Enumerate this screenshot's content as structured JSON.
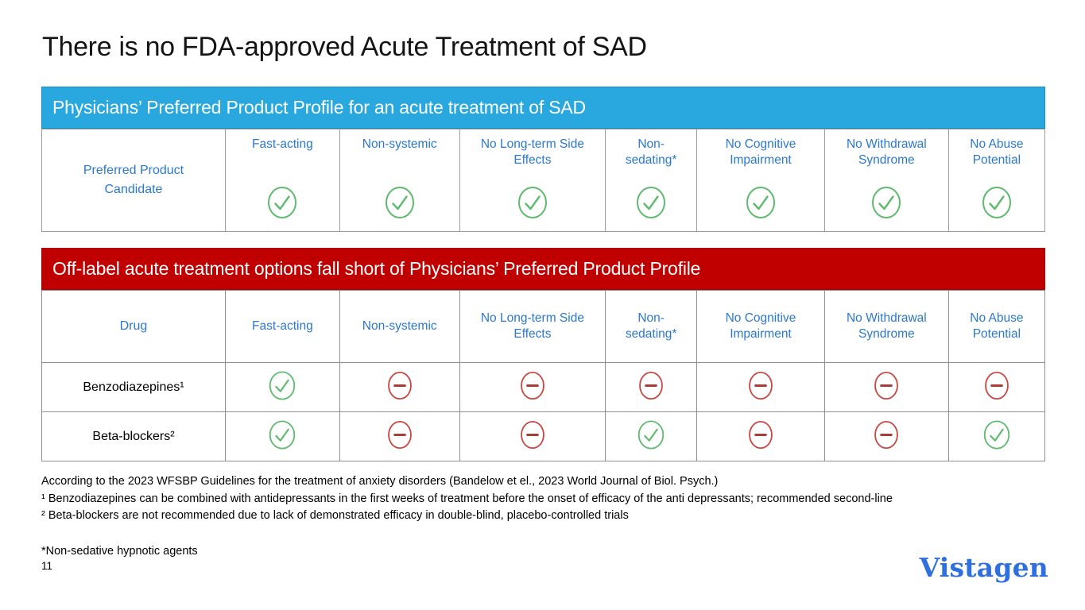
{
  "slide": {
    "title": "There is no FDA-approved Acute Treatment of SAD",
    "page_number": "11",
    "logo_text": "Vistagen"
  },
  "criteria_columns": [
    "Fast-acting",
    "Non-systemic",
    "No Long-term Side Effects",
    "Non-sedating*",
    "No Cognitive Impairment",
    "No Withdrawal Syndrome",
    "No Abuse Potential"
  ],
  "table1": {
    "header": "Physicians’ Preferred Product Profile for an acute treatment of SAD",
    "row_label": "Preferred Product Candidate",
    "values": [
      "check",
      "check",
      "check",
      "check",
      "check",
      "check",
      "check"
    ]
  },
  "table2": {
    "header": "Off-label acute treatment options fall short of Physicians’ Preferred Product Profile",
    "row_label_header": "Drug",
    "rows": [
      {
        "label": "Benzodiazepines¹",
        "values": [
          "check",
          "minus",
          "minus",
          "minus",
          "minus",
          "minus",
          "minus"
        ]
      },
      {
        "label": "Beta-blockers²",
        "values": [
          "check",
          "minus",
          "minus",
          "check",
          "minus",
          "minus",
          "check"
        ]
      }
    ]
  },
  "footnotes": {
    "source_line": "According to the 2023 WFSBP Guidelines for the treatment of anxiety disorders (Bandelow et el., 2023 World Journal of Biol. Psych.)",
    "note1": "¹ Benzodiazepines can be combined with antidepressants in the first weeks of treatment before the onset of efficacy of the anti depressants; recommended second-line",
    "note2": "² Beta-blockers are not recommended due to lack of demonstrated efficacy in double-blind, placebo-controlled trials",
    "asterisk_note": "*Non-sedative hypnotic agents"
  },
  "icons": {
    "check": "check-icon",
    "minus": "minus-icon"
  },
  "colors": {
    "banner_blue": "#29A8DF",
    "banner_red": "#C00000",
    "header_text_blue": "#2B78D0",
    "check_green": "#5FBA6E",
    "minus_red": "#CB4540",
    "minus_bar_red": "#A93C35",
    "logo_blue": "#2F6FDE"
  }
}
